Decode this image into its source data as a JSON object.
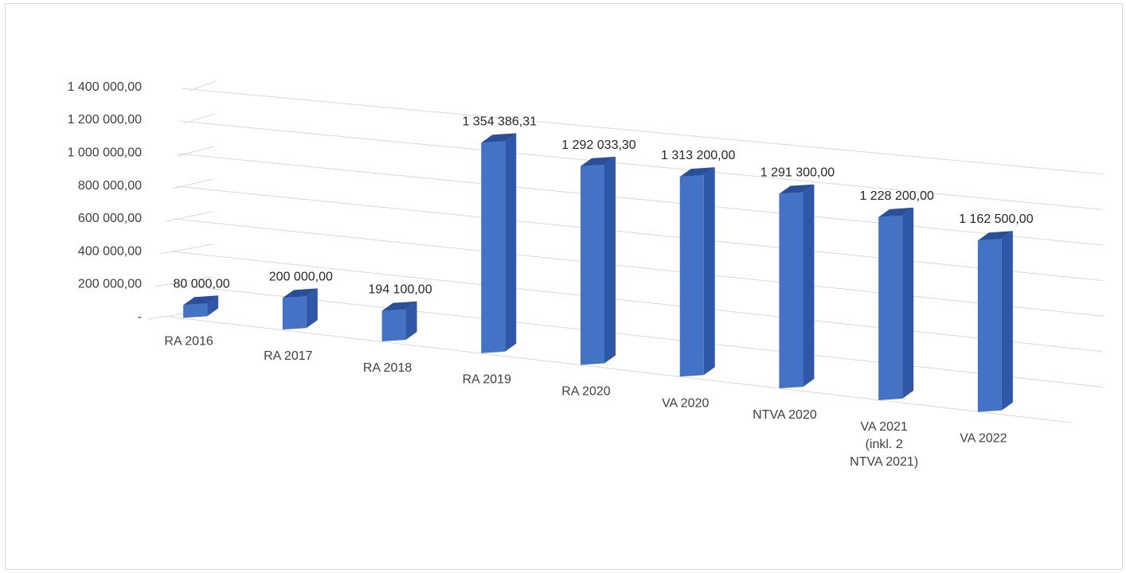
{
  "chart_data": {
    "type": "bar",
    "view": "3d-perspective",
    "categories": [
      [
        "RA 2016"
      ],
      [
        "RA 2017"
      ],
      [
        "RA 2018"
      ],
      [
        "RA 2019"
      ],
      [
        "RA 2020"
      ],
      [
        "VA 2020"
      ],
      [
        "NTVA 2020"
      ],
      [
        "VA 2021",
        "(inkl. 2",
        "NTVA 2021)"
      ],
      [
        "VA 2022"
      ]
    ],
    "values": [
      80000,
      200000,
      194100,
      1354386.31,
      1292033.3,
      1313200,
      1291300,
      1228200,
      1162500
    ],
    "data_labels": [
      "80 000,00",
      "200 000,00",
      "194 100,00",
      "1 354 386,31",
      "1 292 033,30",
      "1 313 200,00",
      "1 291 300,00",
      "1 228 200,00",
      "1 162 500,00"
    ],
    "y_ticks": [
      "-",
      "200 000,00",
      "400 000,00",
      "600 000,00",
      "800 000,00",
      "1 000 000,00",
      "1 200 000,00",
      "1 400 000,00"
    ],
    "y_tick_values": [
      0,
      200000,
      400000,
      600000,
      800000,
      1000000,
      1200000,
      1400000
    ],
    "ylim": [
      0,
      1400000
    ],
    "title": "",
    "xlabel": "",
    "ylabel": "",
    "grid": true,
    "legend": "none",
    "colors": {
      "front": "#4472c4",
      "side": "#2e57a8",
      "top": "#2a4f98",
      "grid": "#d9d9d9"
    }
  }
}
